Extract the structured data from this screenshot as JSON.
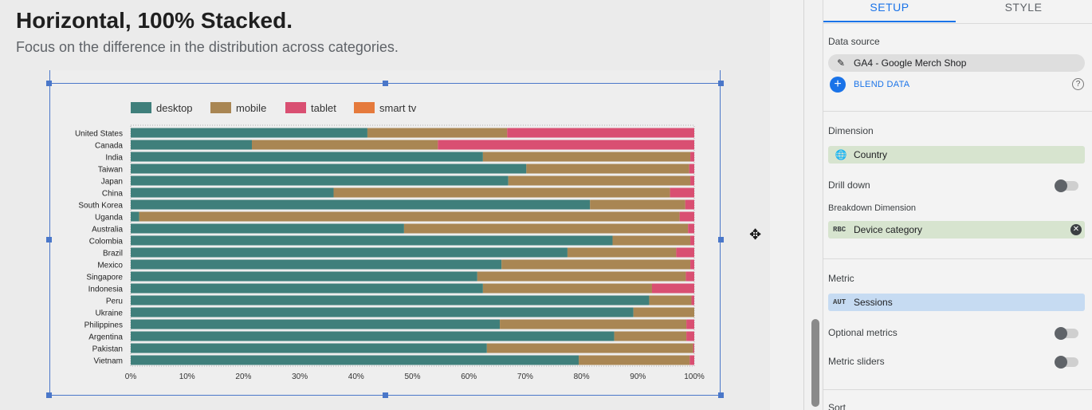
{
  "page": {
    "heading": "Horizontal, 100% Stacked.",
    "subheading": "Focus on the difference in the distribution across categories."
  },
  "panel": {
    "tabs": [
      "SETUP",
      "STYLE"
    ],
    "data_source_label": "Data source",
    "data_source": "GA4 - Google Merch Shop",
    "blend_label": "BLEND DATA",
    "dimension_label": "Dimension",
    "dimension": "Country",
    "drill_down_label": "Drill down",
    "breakdown_label": "Breakdown Dimension",
    "breakdown_code": "RBC",
    "breakdown": "Device category",
    "metric_label": "Metric",
    "metric_code": "AUT",
    "metric": "Sessions",
    "optional_metrics_label": "Optional metrics",
    "metric_sliders_label": "Metric sliders",
    "sort_label": "Sort"
  },
  "colors": {
    "desktop": "#3f7f7b",
    "mobile": "#a98653",
    "tablet": "#d94f72",
    "smart_tv": "#e57a3c"
  },
  "chart_data": {
    "type": "bar",
    "orientation": "horizontal",
    "stacked": "100%",
    "categories": [
      "United States",
      "Canada",
      "India",
      "Taiwan",
      "Japan",
      "China",
      "South Korea",
      "Uganda",
      "Australia",
      "Colombia",
      "Brazil",
      "Mexico",
      "Singapore",
      "Indonesia",
      "Peru",
      "Ukraine",
      "Philippines",
      "Argentina",
      "Pakistan",
      "Vietnam"
    ],
    "series": [
      {
        "name": "desktop",
        "values": [
          42,
          21.5,
          62.5,
          70.2,
          67,
          36,
          81.5,
          1.5,
          48.5,
          85.5,
          77.5,
          65.8,
          61.5,
          62.5,
          92,
          89.2,
          65.5,
          85.8,
          63.2,
          79.5
        ]
      },
      {
        "name": "mobile",
        "values": [
          24.8,
          33,
          36.8,
          28.9,
          32.3,
          59.7,
          16.9,
          95.9,
          50.4,
          13.8,
          19.3,
          33.5,
          37,
          30,
          7.5,
          10.8,
          33.1,
          12.8,
          36.6,
          19.7
        ]
      },
      {
        "name": "tablet",
        "values": [
          33.2,
          45.5,
          0.7,
          0.9,
          0.7,
          4.3,
          1.6,
          2.6,
          1.1,
          0.7,
          3.2,
          0.7,
          1.5,
          7.5,
          0.5,
          0,
          1.4,
          1.4,
          0.2,
          0.8
        ]
      },
      {
        "name": "smart tv",
        "values": [
          0,
          0,
          0,
          0,
          0,
          0,
          0,
          0,
          0,
          0,
          0,
          0,
          0,
          0,
          0,
          0,
          0,
          0,
          0,
          0
        ]
      }
    ],
    "x_ticks": [
      "0%",
      "10%",
      "20%",
      "30%",
      "40%",
      "50%",
      "60%",
      "70%",
      "80%",
      "90%",
      "100%"
    ],
    "xlim": [
      0,
      100
    ],
    "legend": [
      "desktop",
      "mobile",
      "tablet",
      "smart tv"
    ],
    "legend_position": "top"
  }
}
